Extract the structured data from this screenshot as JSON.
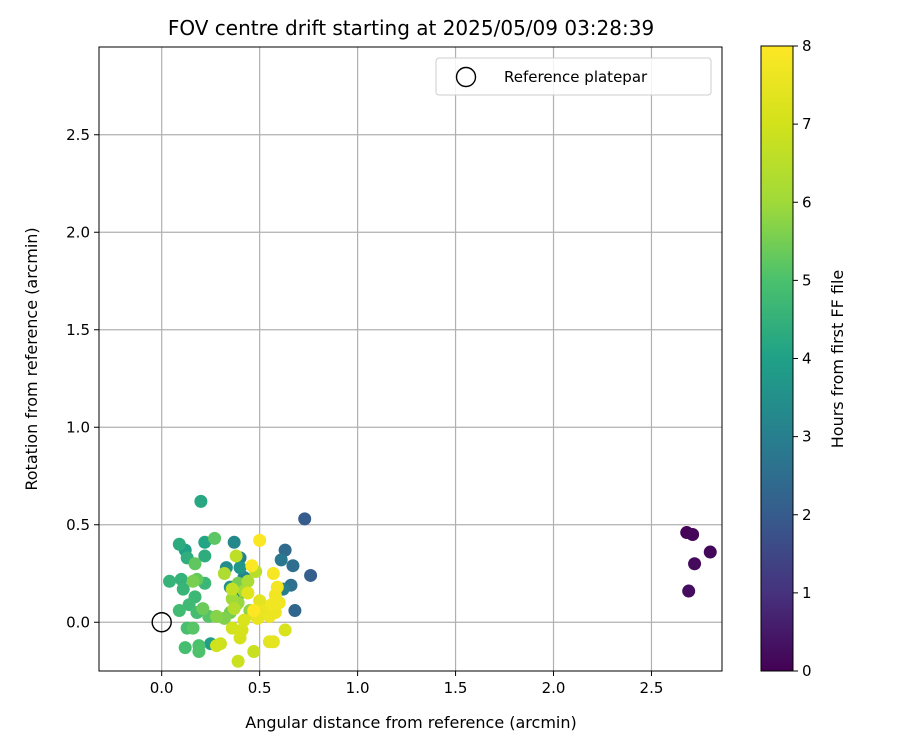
{
  "chart_data": {
    "type": "scatter",
    "title": "FOV centre drift starting at 2025/05/09 03:28:39",
    "xlabel": "Angular distance from reference (arcmin)",
    "ylabel": "Rotation from reference (arcmin)",
    "xlim": [
      -0.32,
      2.86
    ],
    "ylim": [
      -0.25,
      2.95
    ],
    "xticks": [
      0.0,
      0.5,
      1.0,
      1.5,
      2.0,
      2.5
    ],
    "xtick_labels": [
      "0.0",
      "0.5",
      "1.0",
      "1.5",
      "2.0",
      "2.5"
    ],
    "yticks": [
      0.0,
      0.5,
      1.0,
      1.5,
      2.0,
      2.5
    ],
    "ytick_labels": [
      "0.0",
      "0.5",
      "1.0",
      "1.5",
      "2.0",
      "2.5"
    ],
    "grid": true,
    "colormap": "viridis",
    "colorbar": {
      "label": "Hours from first FF file",
      "range": [
        0,
        8
      ],
      "ticks": [
        0,
        1,
        2,
        3,
        4,
        5,
        6,
        7,
        8
      ],
      "tick_labels": [
        "0",
        "1",
        "2",
        "3",
        "4",
        "5",
        "6",
        "7",
        "8"
      ]
    },
    "legend": {
      "placement": "upper right",
      "entries": [
        "Reference platepar"
      ]
    },
    "reference_point": {
      "x": 0.0,
      "y": 0.0
    },
    "points": [
      {
        "x": 2.68,
        "y": 0.46,
        "c": 0.05
      },
      {
        "x": 2.71,
        "y": 0.45,
        "c": 0.1
      },
      {
        "x": 2.8,
        "y": 0.36,
        "c": 0.15
      },
      {
        "x": 2.72,
        "y": 0.3,
        "c": 0.2
      },
      {
        "x": 2.69,
        "y": 0.16,
        "c": 0.25
      },
      {
        "x": 0.73,
        "y": 0.53,
        "c": 2.0
      },
      {
        "x": 0.76,
        "y": 0.24,
        "c": 2.1
      },
      {
        "x": 0.68,
        "y": 0.06,
        "c": 2.3
      },
      {
        "x": 0.63,
        "y": 0.37,
        "c": 2.4
      },
      {
        "x": 0.67,
        "y": 0.29,
        "c": 2.5
      },
      {
        "x": 0.66,
        "y": 0.19,
        "c": 2.6
      },
      {
        "x": 0.61,
        "y": 0.32,
        "c": 2.8
      },
      {
        "x": 0.62,
        "y": 0.17,
        "c": 3.0
      },
      {
        "x": 0.4,
        "y": 0.33,
        "c": 3.1
      },
      {
        "x": 0.42,
        "y": 0.23,
        "c": 3.2
      },
      {
        "x": 0.37,
        "y": 0.41,
        "c": 3.3
      },
      {
        "x": 0.33,
        "y": 0.28,
        "c": 3.4
      },
      {
        "x": 0.35,
        "y": 0.18,
        "c": 3.5
      },
      {
        "x": 0.39,
        "y": 0.14,
        "c": 3.6
      },
      {
        "x": 0.4,
        "y": 0.28,
        "c": 3.7
      },
      {
        "x": 0.38,
        "y": 0.09,
        "c": 3.8
      },
      {
        "x": 0.25,
        "y": -0.11,
        "c": 3.9
      },
      {
        "x": 0.12,
        "y": 0.37,
        "c": 4.0
      },
      {
        "x": 0.22,
        "y": 0.41,
        "c": 4.1
      },
      {
        "x": 0.2,
        "y": 0.62,
        "c": 4.2
      },
      {
        "x": 0.09,
        "y": 0.4,
        "c": 4.3
      },
      {
        "x": 0.22,
        "y": 0.34,
        "c": 4.35
      },
      {
        "x": 0.13,
        "y": 0.33,
        "c": 4.4
      },
      {
        "x": 0.1,
        "y": 0.22,
        "c": 4.5
      },
      {
        "x": 0.04,
        "y": 0.21,
        "c": 4.55
      },
      {
        "x": 0.11,
        "y": 0.17,
        "c": 4.6
      },
      {
        "x": 0.22,
        "y": 0.2,
        "c": 4.65
      },
      {
        "x": 0.17,
        "y": 0.13,
        "c": 4.7
      },
      {
        "x": 0.14,
        "y": 0.09,
        "c": 4.75
      },
      {
        "x": 0.09,
        "y": 0.06,
        "c": 4.8
      },
      {
        "x": 0.18,
        "y": 0.05,
        "c": 4.85
      },
      {
        "x": 0.12,
        "y": -0.13,
        "c": 4.9
      },
      {
        "x": 0.13,
        "y": -0.03,
        "c": 4.95
      },
      {
        "x": 0.19,
        "y": -0.12,
        "c": 5.0
      },
      {
        "x": 0.19,
        "y": -0.15,
        "c": 5.05
      },
      {
        "x": 0.24,
        "y": 0.03,
        "c": 5.1
      },
      {
        "x": 0.16,
        "y": -0.03,
        "c": 5.15
      },
      {
        "x": 0.27,
        "y": 0.43,
        "c": 5.2
      },
      {
        "x": 0.17,
        "y": 0.3,
        "c": 5.25
      },
      {
        "x": 0.18,
        "y": 0.22,
        "c": 5.3
      },
      {
        "x": 0.21,
        "y": 0.07,
        "c": 5.4
      },
      {
        "x": 0.35,
        "y": 0.05,
        "c": 5.45
      },
      {
        "x": 0.39,
        "y": 0.2,
        "c": 5.5
      },
      {
        "x": 0.16,
        "y": 0.21,
        "c": 5.55
      },
      {
        "x": 0.32,
        "y": 0.02,
        "c": 5.6
      },
      {
        "x": 0.28,
        "y": 0.03,
        "c": 5.7
      },
      {
        "x": 0.45,
        "y": 0.06,
        "c": 5.8
      },
      {
        "x": 0.39,
        "y": 0.1,
        "c": 5.9
      },
      {
        "x": 0.36,
        "y": 0.12,
        "c": 6.0
      },
      {
        "x": 0.42,
        "y": 0.16,
        "c": 6.1
      },
      {
        "x": 0.44,
        "y": 0.21,
        "c": 6.2
      },
      {
        "x": 0.32,
        "y": 0.25,
        "c": 6.3
      },
      {
        "x": 0.37,
        "y": 0.07,
        "c": 6.4
      },
      {
        "x": 0.48,
        "y": 0.26,
        "c": 6.5
      },
      {
        "x": 0.38,
        "y": 0.34,
        "c": 6.6
      },
      {
        "x": 0.36,
        "y": 0.17,
        "c": 6.7
      },
      {
        "x": 0.47,
        "y": -0.15,
        "c": 6.8
      },
      {
        "x": 0.39,
        "y": -0.2,
        "c": 6.85
      },
      {
        "x": 0.3,
        "y": -0.11,
        "c": 6.9
      },
      {
        "x": 0.28,
        "y": -0.12,
        "c": 6.95
      },
      {
        "x": 0.36,
        "y": -0.03,
        "c": 7.0
      },
      {
        "x": 0.4,
        "y": -0.08,
        "c": 7.05
      },
      {
        "x": 0.41,
        "y": -0.04,
        "c": 7.1
      },
      {
        "x": 0.63,
        "y": -0.04,
        "c": 7.15
      },
      {
        "x": 0.42,
        "y": 0.01,
        "c": 7.2
      },
      {
        "x": 0.47,
        "y": 0.04,
        "c": 7.25
      },
      {
        "x": 0.44,
        "y": 0.15,
        "c": 7.3
      },
      {
        "x": 0.5,
        "y": 0.11,
        "c": 7.35
      },
      {
        "x": 0.55,
        "y": -0.1,
        "c": 7.4
      },
      {
        "x": 0.57,
        "y": -0.1,
        "c": 7.45
      },
      {
        "x": 0.49,
        "y": 0.02,
        "c": 7.5
      },
      {
        "x": 0.52,
        "y": 0.06,
        "c": 7.55
      },
      {
        "x": 0.55,
        "y": 0.03,
        "c": 7.6
      },
      {
        "x": 0.58,
        "y": 0.05,
        "c": 7.65
      },
      {
        "x": 0.56,
        "y": 0.09,
        "c": 7.7
      },
      {
        "x": 0.6,
        "y": 0.1,
        "c": 7.72
      },
      {
        "x": 0.58,
        "y": 0.14,
        "c": 7.75
      },
      {
        "x": 0.59,
        "y": 0.18,
        "c": 7.8
      },
      {
        "x": 0.57,
        "y": 0.25,
        "c": 7.85
      },
      {
        "x": 0.5,
        "y": 0.42,
        "c": 7.9
      },
      {
        "x": 0.46,
        "y": 0.29,
        "c": 7.95
      },
      {
        "x": 0.47,
        "y": 0.06,
        "c": 8.0
      }
    ]
  }
}
